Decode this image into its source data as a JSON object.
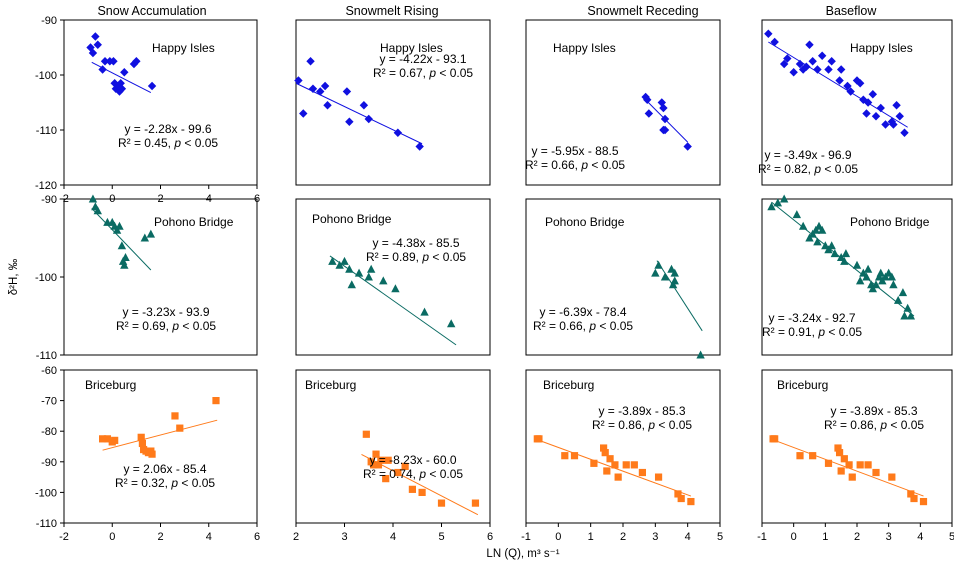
{
  "figure": {
    "y_axis_label": "δ²H, ‰",
    "x_axis_label": "LN (Q), m³ s⁻¹",
    "columns": [
      "Snow Accumulation",
      "Snowmelt Rising",
      "Snowmelt Receding",
      "Baseflow"
    ],
    "rows": [
      "Happy Isles",
      "Pohono Bridge",
      "Briceburg"
    ],
    "colors": {
      "Happy Isles": "#1010e0",
      "Pohono Bridge": "#0a6b63",
      "Briceburg": "#ff7a1a"
    },
    "markers": {
      "Happy Isles": "diamond",
      "Pohono Bridge": "triangle",
      "Briceburg": "square"
    }
  },
  "chart_data": [
    {
      "type": "scatter",
      "row": 0,
      "col": 0,
      "site": "Happy Isles",
      "season": "Snow Accumulation",
      "eq": "y = -2.28x - 99.6",
      "r2": "R² = 0.45,",
      "p": "p < 0.05",
      "xlim": [
        -2,
        6
      ],
      "ylim": [
        -120,
        -90
      ],
      "xticks": [
        -2,
        0,
        2,
        4,
        6
      ],
      "yticks": [
        -120,
        -110,
        -100,
        -90
      ],
      "fit": {
        "x": [
          -0.85,
          1.6
        ],
        "y": [
          -97.7,
          -103.2
        ]
      },
      "points": [
        [
          -0.9,
          -95
        ],
        [
          -0.7,
          -93
        ],
        [
          -0.6,
          -94.5
        ],
        [
          -0.8,
          -96
        ],
        [
          -0.4,
          -99
        ],
        [
          -0.3,
          -97.5
        ],
        [
          -0.1,
          -97.5
        ],
        [
          0.05,
          -97.5
        ],
        [
          0.1,
          -101.5
        ],
        [
          0.15,
          -102.5
        ],
        [
          0.25,
          -102
        ],
        [
          0.3,
          -103
        ],
        [
          0.35,
          -101.5
        ],
        [
          0.4,
          -102.5
        ],
        [
          0.5,
          -99.5
        ],
        [
          0.9,
          -98
        ],
        [
          1.0,
          -97.5
        ],
        [
          1.65,
          -102
        ]
      ]
    },
    {
      "type": "scatter",
      "row": 0,
      "col": 1,
      "site": "Happy Isles",
      "season": "Snowmelt Rising",
      "eq": "y = -4.22x - 93.1",
      "r2": "R² = 0.67,",
      "p": "p < 0.05",
      "xlim": [
        2,
        6
      ],
      "ylim": [
        -120,
        -90
      ],
      "xticks": [],
      "yticks": [],
      "fit": {
        "x": [
          2.0,
          4.6
        ],
        "y": [
          -101.5,
          -112.5
        ]
      },
      "points": [
        [
          2.05,
          -101
        ],
        [
          2.15,
          -107
        ],
        [
          2.3,
          -97.5
        ],
        [
          2.35,
          -102.5
        ],
        [
          2.5,
          -103
        ],
        [
          2.6,
          -102
        ],
        [
          2.65,
          -105.5
        ],
        [
          3.05,
          -103
        ],
        [
          3.1,
          -108.5
        ],
        [
          3.4,
          -105.5
        ],
        [
          3.5,
          -108
        ],
        [
          4.1,
          -110.5
        ],
        [
          4.55,
          -113
        ]
      ]
    },
    {
      "type": "scatter",
      "row": 0,
      "col": 2,
      "site": "Happy Isles",
      "season": "Snowmelt Receding",
      "eq": "y = -5.95x - 88.5",
      "r2": "R² = 0.66,",
      "p": "p < 0.05",
      "xlim": [
        -1,
        5
      ],
      "ylim": [
        -120,
        -90
      ],
      "xticks": [],
      "yticks": [],
      "fit": {
        "x": [
          2.7,
          4.0
        ],
        "y": [
          -104.5,
          -112.2
        ]
      },
      "points": [
        [
          2.7,
          -104
        ],
        [
          2.75,
          -104.5
        ],
        [
          2.8,
          -107
        ],
        [
          3.2,
          -105
        ],
        [
          3.25,
          -106
        ],
        [
          3.3,
          -108
        ],
        [
          3.25,
          -110
        ],
        [
          3.3,
          -110
        ],
        [
          4.0,
          -113
        ]
      ]
    },
    {
      "type": "scatter",
      "row": 0,
      "col": 3,
      "site": "Happy Isles",
      "season": "Baseflow",
      "eq": "y = -3.49x - 96.9",
      "r2": "R² = 0.82,",
      "p": "p < 0.05",
      "xlim": [
        -1,
        5
      ],
      "ylim": [
        -120,
        -90
      ],
      "xticks": [],
      "yticks": [],
      "fit": {
        "x": [
          -0.8,
          3.6
        ],
        "y": [
          -94.0,
          -109.5
        ]
      },
      "points": [
        [
          -0.8,
          -92.5
        ],
        [
          -0.6,
          -94
        ],
        [
          -0.3,
          -98
        ],
        [
          -0.2,
          -97
        ],
        [
          0.0,
          -99.5
        ],
        [
          0.2,
          -98
        ],
        [
          0.3,
          -99
        ],
        [
          0.4,
          -98.5
        ],
        [
          0.5,
          -94.5
        ],
        [
          0.6,
          -97.5
        ],
        [
          0.75,
          -99
        ],
        [
          0.9,
          -96.5
        ],
        [
          1.1,
          -99
        ],
        [
          1.2,
          -97.5
        ],
        [
          1.45,
          -101
        ],
        [
          1.5,
          -99
        ],
        [
          1.7,
          -102
        ],
        [
          1.8,
          -103
        ],
        [
          2.0,
          -101
        ],
        [
          2.1,
          -101.5
        ],
        [
          2.2,
          -104.5
        ],
        [
          2.3,
          -107
        ],
        [
          2.35,
          -105
        ],
        [
          2.5,
          -103.5
        ],
        [
          2.6,
          -107.5
        ],
        [
          2.75,
          -106
        ],
        [
          2.9,
          -109
        ],
        [
          3.1,
          -108.5
        ],
        [
          3.15,
          -109
        ],
        [
          3.25,
          -105.5
        ],
        [
          3.35,
          -107.5
        ],
        [
          3.5,
          -110.5
        ]
      ]
    },
    {
      "type": "scatter",
      "row": 1,
      "col": 0,
      "site": "Pohono Bridge",
      "season": "Snow Accumulation",
      "eq": "y = -3.23x - 93.9",
      "r2": "R² = 0.69,",
      "p": "p < 0.05",
      "xlim": [
        -2,
        6
      ],
      "ylim": [
        -110,
        -90
      ],
      "xticks": [],
      "yticks": [
        -110,
        -100,
        -90
      ],
      "fit": {
        "x": [
          -0.85,
          1.6
        ],
        "y": [
          -91.2,
          -99.1
        ]
      },
      "points": [
        [
          -0.8,
          -90
        ],
        [
          -0.7,
          -91
        ],
        [
          -0.6,
          -91.5
        ],
        [
          -0.2,
          -93
        ],
        [
          0.0,
          -93
        ],
        [
          0.1,
          -93.5
        ],
        [
          0.2,
          -94
        ],
        [
          0.3,
          -93.5
        ],
        [
          0.4,
          -96
        ],
        [
          0.45,
          -98
        ],
        [
          0.5,
          -98.5
        ],
        [
          0.55,
          -97.5
        ],
        [
          1.35,
          -95
        ],
        [
          1.6,
          -94.5
        ]
      ]
    },
    {
      "type": "scatter",
      "row": 1,
      "col": 1,
      "site": "Pohono Bridge",
      "season": "Snowmelt Rising",
      "eq": "y = -4.38x - 85.5",
      "r2": "R² = 0.89,",
      "p": "p < 0.05",
      "xlim": [
        2,
        6
      ],
      "ylim": [
        -110,
        -90
      ],
      "xticks": [],
      "yticks": [],
      "fit": {
        "x": [
          2.7,
          5.3
        ],
        "y": [
          -97.3,
          -108.7
        ]
      },
      "points": [
        [
          2.75,
          -98
        ],
        [
          2.9,
          -98.5
        ],
        [
          3.0,
          -98
        ],
        [
          3.1,
          -99
        ],
        [
          3.15,
          -101
        ],
        [
          3.3,
          -99.5
        ],
        [
          3.5,
          -100
        ],
        [
          3.55,
          -99
        ],
        [
          3.8,
          -100.5
        ],
        [
          4.05,
          -101.5
        ],
        [
          4.65,
          -104.5
        ],
        [
          5.2,
          -106
        ]
      ]
    },
    {
      "type": "scatter",
      "row": 1,
      "col": 2,
      "site": "Pohono Bridge",
      "season": "Snowmelt Receding",
      "eq": "y = -6.39x - 78.4",
      "r2": "R² = 0.66,",
      "p": "p < 0.05",
      "xlim": [
        -1,
        5
      ],
      "ylim": [
        -110,
        -90
      ],
      "xticks": [],
      "yticks": [],
      "fit": {
        "x": [
          3.05,
          4.45
        ],
        "y": [
          -97.9,
          -106.9
        ]
      },
      "points": [
        [
          3.0,
          -99.5
        ],
        [
          3.1,
          -98.5
        ],
        [
          3.3,
          -100
        ],
        [
          3.5,
          -99
        ],
        [
          3.6,
          -99.5
        ],
        [
          3.6,
          -100.5
        ],
        [
          3.55,
          -101
        ],
        [
          4.4,
          -110
        ]
      ]
    },
    {
      "type": "scatter",
      "row": 1,
      "col": 3,
      "site": "Pohono Bridge",
      "season": "Baseflow",
      "eq": "y = -3.24x - 92.7",
      "r2": "R² = 0.91,",
      "p": "p < 0.05",
      "xlim": [
        -1,
        5
      ],
      "ylim": [
        -110,
        -90
      ],
      "xticks": [],
      "yticks": [],
      "fit": {
        "x": [
          -0.7,
          3.8
        ],
        "y": [
          -90.4,
          -105.0
        ]
      },
      "points": [
        [
          -0.7,
          -91
        ],
        [
          -0.5,
          -90.5
        ],
        [
          -0.3,
          -90
        ],
        [
          0.1,
          -92
        ],
        [
          0.3,
          -93.5
        ],
        [
          0.5,
          -95
        ],
        [
          0.6,
          -94.5
        ],
        [
          0.7,
          -94
        ],
        [
          0.75,
          -95.5
        ],
        [
          0.8,
          -93.5
        ],
        [
          0.9,
          -94
        ],
        [
          1.0,
          -96
        ],
        [
          1.1,
          -96.5
        ],
        [
          1.2,
          -96
        ],
        [
          1.3,
          -97
        ],
        [
          1.5,
          -97.5
        ],
        [
          1.6,
          -98
        ],
        [
          1.65,
          -97
        ],
        [
          2.0,
          -98.5
        ],
        [
          2.1,
          -100.5
        ],
        [
          2.2,
          -99.5
        ],
        [
          2.3,
          -100
        ],
        [
          2.35,
          -99
        ],
        [
          2.45,
          -101
        ],
        [
          2.5,
          -101.5
        ],
        [
          2.6,
          -101
        ],
        [
          2.7,
          -100
        ],
        [
          2.75,
          -99.5
        ],
        [
          2.8,
          -100.5
        ],
        [
          2.9,
          -100
        ],
        [
          3.0,
          -99.5
        ],
        [
          3.1,
          -100
        ],
        [
          3.15,
          -101
        ],
        [
          3.3,
          -103
        ],
        [
          3.45,
          -102
        ],
        [
          3.5,
          -105
        ],
        [
          3.6,
          -104
        ],
        [
          3.7,
          -105
        ]
      ]
    },
    {
      "type": "scatter",
      "row": 2,
      "col": 0,
      "site": "Briceburg",
      "season": "Snow Accumulation",
      "eq": "y = 2.06x - 85.4",
      "r2": "R² = 0.32,",
      "p": "p < 0.05",
      "xlim": [
        -2,
        6
      ],
      "ylim": [
        -110,
        -60
      ],
      "xticks": [
        -2,
        0,
        2,
        4,
        6
      ],
      "yticks": [
        -110,
        -100,
        -90,
        -80,
        -70,
        -60
      ],
      "fit": {
        "x": [
          -0.4,
          4.35
        ],
        "y": [
          -86.2,
          -76.4
        ]
      },
      "points": [
        [
          -0.4,
          -82.5
        ],
        [
          -0.2,
          -82.5
        ],
        [
          0.0,
          -83.5
        ],
        [
          0.1,
          -83
        ],
        [
          1.2,
          -82
        ],
        [
          1.25,
          -84
        ],
        [
          1.3,
          -86
        ],
        [
          1.4,
          -86.5
        ],
        [
          1.5,
          -87
        ],
        [
          1.6,
          -86.5
        ],
        [
          1.65,
          -87.5
        ],
        [
          2.6,
          -75
        ],
        [
          2.8,
          -79
        ],
        [
          4.3,
          -70
        ]
      ]
    },
    {
      "type": "scatter",
      "row": 2,
      "col": 1,
      "site": "Briceburg",
      "season": "Snowmelt Rising",
      "eq": "y = -8.23x - 60.0",
      "r2": "R² = 0.74,",
      "p": "p < 0.05",
      "xlim": [
        2,
        6
      ],
      "ylim": [
        -110,
        -60
      ],
      "xticks": [
        2,
        3,
        4,
        5,
        6
      ],
      "yticks": [],
      "fit": {
        "x": [
          3.35,
          5.75
        ],
        "y": [
          -87.6,
          -107.3
        ]
      },
      "points": [
        [
          3.45,
          -81
        ],
        [
          3.55,
          -90
        ],
        [
          3.6,
          -91
        ],
        [
          3.65,
          -87.5
        ],
        [
          3.7,
          -91
        ],
        [
          3.75,
          -89.5
        ],
        [
          3.85,
          -95.5
        ],
        [
          3.9,
          -89.5
        ],
        [
          4.1,
          -93.5
        ],
        [
          4.25,
          -91.5
        ],
        [
          4.4,
          -99
        ],
        [
          4.6,
          -100
        ],
        [
          5.0,
          -103.5
        ],
        [
          5.7,
          -103.5
        ]
      ]
    },
    {
      "type": "scatter",
      "row": 2,
      "col": 2,
      "site": "Briceburg",
      "season": "Snowmelt Receding",
      "eq": "y = -3.89x - 85.3",
      "r2": "R² = 0.86,",
      "p": "p < 0.05",
      "xlim": [
        -1,
        5
      ],
      "ylim": [
        -110,
        -60
      ],
      "xticks": [
        -1,
        0,
        1,
        2,
        3,
        4,
        5
      ],
      "yticks": [],
      "fit": {
        "x": [
          -0.7,
          4.1
        ],
        "y": [
          -82.6,
          -101.2
        ]
      },
      "points": [
        [
          -0.65,
          -82.5
        ],
        [
          -0.6,
          -82.5
        ],
        [
          0.2,
          -88
        ],
        [
          0.5,
          -88
        ],
        [
          1.1,
          -90.5
        ],
        [
          1.4,
          -85.5
        ],
        [
          1.45,
          -87
        ],
        [
          1.5,
          -93
        ],
        [
          1.6,
          -89
        ],
        [
          1.75,
          -91
        ],
        [
          1.85,
          -95
        ],
        [
          2.1,
          -91
        ],
        [
          2.35,
          -91
        ],
        [
          2.6,
          -93.5
        ],
        [
          3.1,
          -95
        ],
        [
          3.7,
          -100.5
        ],
        [
          3.8,
          -102
        ],
        [
          4.1,
          -103
        ]
      ]
    },
    {
      "type": "scatter",
      "row": 2,
      "col": 3,
      "site": "Briceburg",
      "season": "Baseflow",
      "eq": "y = -3.89x - 85.3",
      "r2": "R² = 0.86,",
      "p": "p < 0.05",
      "xlim": [
        -1,
        5
      ],
      "ylim": [
        -110,
        -60
      ],
      "xticks": [
        -1,
        0,
        1,
        2,
        3,
        4,
        5
      ],
      "yticks": [],
      "fit": {
        "x": [
          -0.7,
          4.1
        ],
        "y": [
          -82.6,
          -101.2
        ]
      },
      "points": [
        [
          -0.65,
          -82.5
        ],
        [
          -0.6,
          -82.5
        ],
        [
          0.2,
          -88
        ],
        [
          0.6,
          -88
        ],
        [
          1.1,
          -90.5
        ],
        [
          1.4,
          -85.5
        ],
        [
          1.45,
          -87
        ],
        [
          1.5,
          -93
        ],
        [
          1.6,
          -89
        ],
        [
          1.75,
          -91
        ],
        [
          1.85,
          -95
        ],
        [
          2.1,
          -91
        ],
        [
          2.35,
          -91
        ],
        [
          2.6,
          -93.5
        ],
        [
          3.1,
          -95
        ],
        [
          3.7,
          -100.5
        ],
        [
          3.8,
          -102
        ],
        [
          4.1,
          -103
        ]
      ]
    }
  ]
}
